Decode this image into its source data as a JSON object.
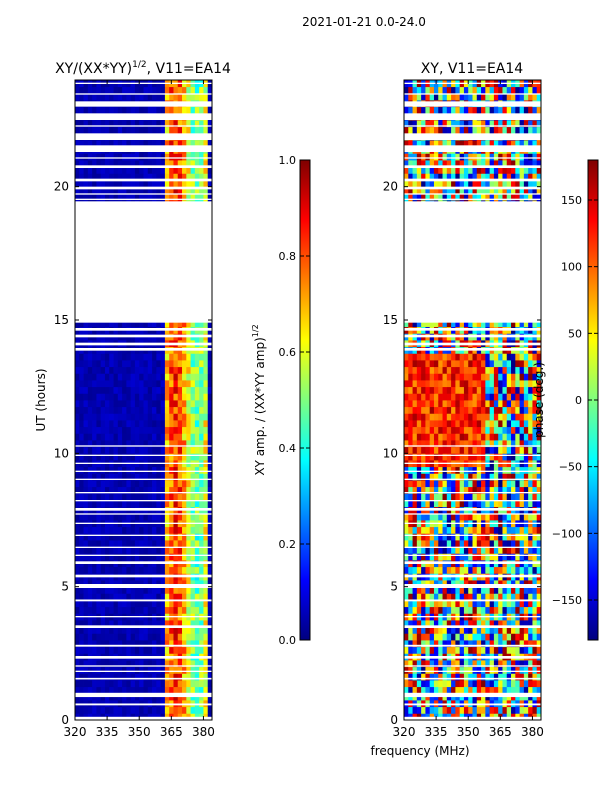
{
  "suptitle": "2021-01-21 0.0-24.0",
  "xlabel_shared": "frequency (MHz)",
  "colors": {
    "jet": [
      "#00007f",
      "#0000ff",
      "#007fff",
      "#00ffff",
      "#7fff7f",
      "#ffff00",
      "#ff7f00",
      "#ff0000",
      "#7f0000"
    ],
    "gap": "#ffffff",
    "frame": "#000000"
  },
  "chart_data": [
    {
      "id": "amp",
      "type": "heatmap",
      "title_main": "XY/(XX*YY)",
      "title_sup": "1/2",
      "title_tail": ", V11=EA14",
      "ylabel": "UT (hours)",
      "xlim": [
        320,
        384
      ],
      "ylim": [
        0,
        24
      ],
      "xticks": [
        320,
        335,
        350,
        365,
        380
      ],
      "yticks": [
        0,
        5,
        10,
        15,
        20
      ],
      "colorbar": {
        "label": "XY amp. / (XX*YY amp)",
        "label_sup": "1/2",
        "range": [
          0.0,
          1.0
        ],
        "ticks": [
          "0.0",
          "0.2",
          "0.4",
          "0.6",
          "0.8",
          "1.0"
        ],
        "tick_values": [
          0.0,
          0.2,
          0.4,
          0.6,
          0.8,
          1.0
        ]
      }
    },
    {
      "id": "phase",
      "type": "heatmap",
      "title": "XY, V11=EA14",
      "xlim": [
        320,
        384
      ],
      "ylim": [
        0,
        24
      ],
      "xticks": [
        320,
        335,
        350,
        365,
        380
      ],
      "yticks": [
        0,
        5,
        10,
        15,
        20
      ],
      "colorbar": {
        "label": "phase (deg.)",
        "range": [
          -180,
          180
        ],
        "ticks": [
          "150",
          "100",
          "50",
          "0",
          "−50",
          "−100",
          "−150"
        ],
        "tick_values": [
          150,
          100,
          50,
          0,
          -50,
          -100,
          -150
        ]
      }
    }
  ],
  "data_gaps_hours": [
    [
      0.0,
      0.12
    ],
    [
      0.55,
      0.62
    ],
    [
      0.86,
      1.02
    ],
    [
      1.52,
      1.58
    ],
    [
      1.8,
      1.85
    ],
    [
      2.0,
      2.05
    ],
    [
      2.3,
      2.4
    ],
    [
      2.75,
      2.82
    ],
    [
      3.45,
      3.55
    ],
    [
      3.85,
      3.9
    ],
    [
      4.45,
      4.52
    ],
    [
      4.95,
      5.1
    ],
    [
      5.35,
      5.45
    ],
    [
      5.85,
      5.95
    ],
    [
      6.15,
      6.2
    ],
    [
      6.45,
      6.5
    ],
    [
      6.9,
      6.95
    ],
    [
      7.35,
      7.4
    ],
    [
      7.7,
      7.75
    ],
    [
      7.85,
      7.95
    ],
    [
      8.2,
      8.25
    ],
    [
      8.5,
      8.55
    ],
    [
      9.0,
      9.05
    ],
    [
      9.3,
      9.35
    ],
    [
      9.6,
      9.65
    ],
    [
      9.9,
      9.95
    ],
    [
      10.25,
      10.3
    ],
    [
      13.85,
      13.95
    ],
    [
      14.05,
      14.15
    ],
    [
      14.35,
      14.45
    ],
    [
      14.6,
      14.7
    ],
    [
      14.9,
      15.0
    ],
    [
      19.5,
      19.55
    ],
    [
      19.7,
      19.75
    ],
    [
      19.9,
      20.0
    ],
    [
      20.2,
      20.3
    ],
    [
      20.7,
      20.8
    ],
    [
      21.05,
      21.1
    ],
    [
      21.3,
      21.55
    ],
    [
      21.75,
      22.0
    ],
    [
      22.25,
      22.3
    ],
    [
      22.5,
      22.75
    ],
    [
      23.0,
      23.2
    ],
    [
      23.45,
      23.5
    ],
    [
      23.85,
      23.9
    ],
    [
      15.0,
      19.45
    ]
  ]
}
